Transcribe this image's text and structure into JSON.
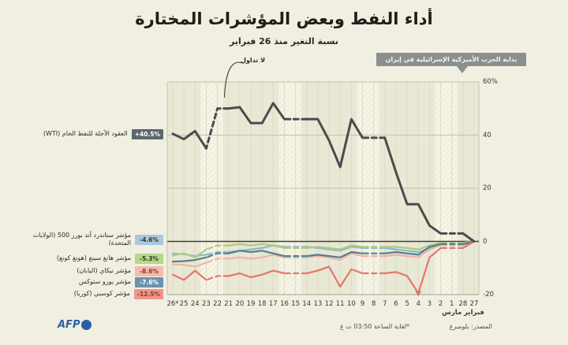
{
  "title": "أداء النفط وبعض المؤشرات المختارة",
  "subtitle": "نسبة التغير منذ 26 فبراير",
  "annotations": {
    "war_label": "بداية الحرب الأميركية الإسرائيلية في إيران",
    "no_trading": "لا تداول"
  },
  "legend": {
    "wti": {
      "value": "+40.5%",
      "label": "العقود الآجلة للنفط الخام (WTI)",
      "badge_bg": "#5d676e",
      "badge_fg": "#ffffff"
    },
    "sp500": {
      "value": "-4.6%",
      "label": "مؤشر ستاندرد أند بورز 500 (الولايات المتحدة)",
      "badge_bg": "#a9c8dc",
      "badge_fg": "#34342f"
    },
    "hangseng": {
      "value": "-5.3%",
      "label": "مؤشر هانغ سينغ (هونغ كونغ)",
      "badge_bg": "#b6d887",
      "badge_fg": "#34342f"
    },
    "nikkei": {
      "value": "-8.6%",
      "label": "مؤشر نيكاي (اليابان)",
      "badge_bg": "#f5bcae",
      "badge_fg": "#8a3a30"
    },
    "eurostoxx": {
      "value": "-7.6%",
      "label": "مؤشر يورو ستوكس",
      "badge_bg": "#6b93ad",
      "badge_fg": "#ffffff"
    },
    "kospi": {
      "value": "-12.5%",
      "label": "مؤشر كوسبي (كوريا)",
      "badge_bg": "#ef968a",
      "badge_fg": "#8a3a30"
    }
  },
  "chart_data": {
    "type": "line",
    "x": [
      "27",
      "28",
      "1",
      "2",
      "3",
      "4",
      "5",
      "6",
      "7",
      "8",
      "9",
      "10",
      "11",
      "12",
      "13",
      "14",
      "15",
      "16",
      "17",
      "18",
      "19",
      "20",
      "21",
      "22",
      "23",
      "24",
      "25",
      "26*"
    ],
    "x_direction": "right-to-left",
    "months": [
      {
        "under_index": 0,
        "label": "فبراير"
      },
      {
        "under_index": 2,
        "label": "مارس"
      }
    ],
    "ylim": [
      -20,
      60
    ],
    "yticks": [
      {
        "v": 60,
        "label": "60%"
      },
      {
        "v": 40,
        "label": "40"
      },
      {
        "v": 20,
        "label": "20"
      },
      {
        "v": 0,
        "label": "0"
      },
      {
        "v": -20,
        "label": "-20"
      }
    ],
    "weekend_indices": [
      [
        2,
        3
      ],
      [
        9,
        10
      ],
      [
        16,
        17
      ],
      [
        23,
        24
      ]
    ],
    "series": [
      {
        "id": "nikkei",
        "name": "مؤشر نيكاي (اليابان)",
        "color": "#f2b3a4",
        "values": [
          0,
          -1.5,
          -1.5,
          -1.5,
          -3,
          -6,
          -5.5,
          -5,
          -5.5,
          -5.5,
          -5.5,
          -4.5,
          -7,
          -6,
          -5.5,
          -6,
          -6,
          -6,
          -5,
          -6,
          -6.5,
          -6,
          -6.5,
          -6.5,
          -8,
          -9.5,
          -8.8,
          -8.6
        ]
      },
      {
        "id": "sp500",
        "name": "مؤشر ستاندرد أند بورز 500",
        "color": "#8fb8d2",
        "values": [
          0,
          -1,
          -1,
          -1,
          -2.5,
          -4,
          -3.5,
          -3,
          -2.5,
          -2.5,
          -2.5,
          -2,
          -3.5,
          -3,
          -2.5,
          -2,
          -2,
          -2,
          -1.5,
          -2.5,
          -3,
          -3.5,
          -4,
          -4,
          -5,
          -5.5,
          -4.8,
          -4.6
        ]
      },
      {
        "id": "hangseng",
        "name": "مؤشر هانغ سينغ",
        "color": "#b3c97d",
        "values": [
          0,
          -0.5,
          -0.5,
          -0.5,
          -1.5,
          -3,
          -2.5,
          -2,
          -2,
          -2,
          -2,
          -1.5,
          -3,
          -2.5,
          -2,
          -2.5,
          -2.5,
          -2.5,
          -1.5,
          -1,
          -1.5,
          -1,
          -1.5,
          -1.5,
          -3,
          -6,
          -4.5,
          -5.3
        ]
      },
      {
        "id": "eurostoxx",
        "name": "مؤشر يورو ستوكس",
        "color": "#53808f",
        "values": [
          0,
          -1,
          -1,
          -1,
          -2,
          -5,
          -4.5,
          -4,
          -4.5,
          -4.5,
          -4.5,
          -4,
          -6,
          -5.5,
          -5,
          -5.5,
          -5.5,
          -5.5,
          -4.5,
          -3.5,
          -4,
          -3.5,
          -4.5,
          -4.5,
          -6,
          -7,
          -7.4,
          -7.6
        ]
      },
      {
        "id": "kospi",
        "name": "مؤشر كوسبي (كوريا)",
        "color": "#e4776c",
        "values": [
          0,
          -2.5,
          -2.5,
          -2.5,
          -6,
          -19.5,
          -13,
          -11.5,
          -12,
          -12,
          -12,
          -10.5,
          -17,
          -9.5,
          -11,
          -12,
          -12,
          -12,
          -11,
          -12.5,
          -13.5,
          -12,
          -13,
          -13,
          -14.5,
          -11,
          -14.5,
          -12.5
        ]
      },
      {
        "id": "wti",
        "name": "العقود الآجلة للنفط الخام (WTI)",
        "color": "#4b4b4e",
        "values": [
          0,
          3,
          3,
          3,
          6,
          14,
          14,
          26,
          39,
          39,
          39,
          46,
          28,
          38,
          46,
          46,
          46,
          46,
          52,
          44.5,
          44.5,
          50.5,
          50,
          50,
          35,
          41.5,
          38.5,
          40.5
        ]
      }
    ],
    "marker": {
      "series": "kospi",
      "index": 5,
      "shape": "triangle-down",
      "color": "#e4776c"
    },
    "colors": {
      "plot_bg": "#e9e8d5",
      "page_bg": "#f0efe1",
      "grid": "#c2c1b0",
      "zero_line": "#3f3f39",
      "day_grid": "#dcdbc8"
    }
  },
  "footer": {
    "source": "المصدر: بلومبرغ",
    "note": "*لغاية الساعة 03:50 ت غ",
    "logo": "AFP"
  }
}
